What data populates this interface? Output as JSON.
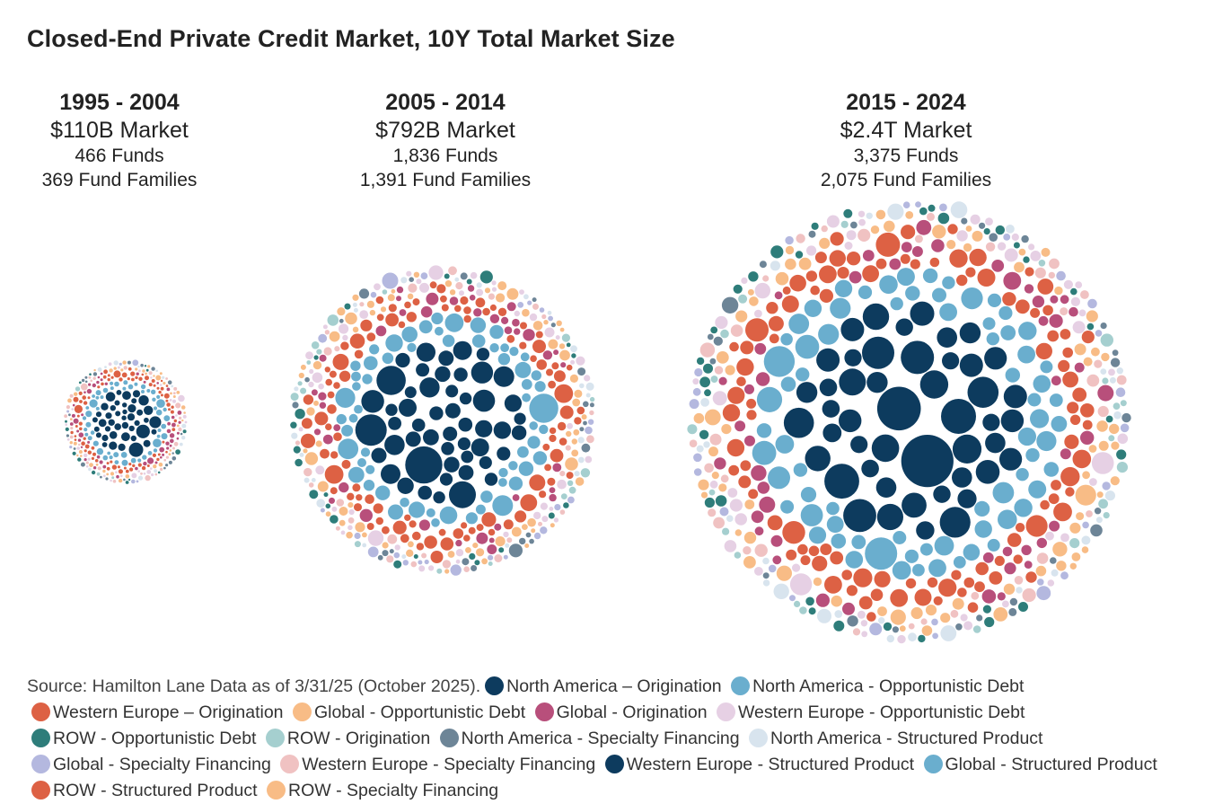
{
  "title": "Closed-End Private Credit Market, 10Y Total Market Size",
  "chart_data": {
    "type": "packed-bubble",
    "title": "Closed-End Private Credit Market, 10Y Total Market Size",
    "periods": [
      {
        "years": "1995 - 2004",
        "market": "$110B Market",
        "funds": "466 Funds",
        "families": "369 Fund Families",
        "market_usd_billions": 110
      },
      {
        "years": "2005 - 2014",
        "market": "$792B Market",
        "funds": "1,836 Funds",
        "families": "1,391 Fund Families",
        "market_usd_billions": 792
      },
      {
        "years": "2015 - 2024",
        "market": "$2.4T Market",
        "funds": "3,375 Funds",
        "families": "2,075 Fund Families",
        "market_usd_billions": 2400
      }
    ],
    "source": "Source: Hamilton Lane Data as of 3/31/25 (October 2025).",
    "legend": [
      {
        "label": "North America – Origination",
        "color": "#0d3b5e"
      },
      {
        "label": "North America - Opportunistic Debt",
        "color": "#6aaece"
      },
      {
        "label": "Western Europe – Origination",
        "color": "#dd6144"
      },
      {
        "label": "Global - Opportunistic Debt",
        "color": "#f8bc86"
      },
      {
        "label": "Global - Origination",
        "color": "#b84f7b"
      },
      {
        "label": "Western Europe - Opportunistic Debt",
        "color": "#e6d0e4"
      },
      {
        "label": "ROW - Opportunistic Debt",
        "color": "#2e7d7a"
      },
      {
        "label": "ROW - Origination",
        "color": "#a5cfcf"
      },
      {
        "label": "North America - Specialty Financing",
        "color": "#6d8597"
      },
      {
        "label": "North America - Structured Product",
        "color": "#d8e4ee"
      },
      {
        "label": "Global - Specialty Financing",
        "color": "#b4b8df"
      },
      {
        "label": "Western Europe - Specialty Financing",
        "color": "#f0c2c2"
      },
      {
        "label": "Western Europe - Structured Product",
        "color": "#0d3b5e"
      },
      {
        "label": "Global - Structured Product",
        "color": "#6aaece"
      },
      {
        "label": "ROW - Structured Product",
        "color": "#dd6144"
      },
      {
        "label": "ROW - Specialty Financing",
        "color": "#f8bc86"
      }
    ]
  }
}
